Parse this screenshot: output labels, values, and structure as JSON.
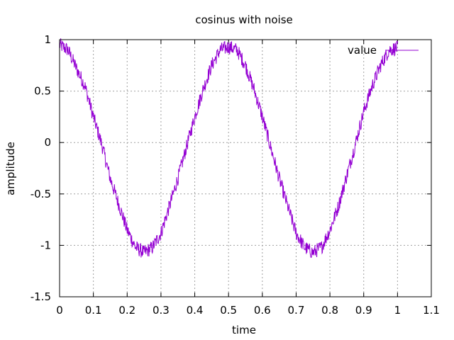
{
  "chart_data": {
    "type": "line",
    "title": "cosinus with noise",
    "xlabel": "time",
    "ylabel": "amplitude",
    "xlim": [
      0,
      1.1
    ],
    "ylim": [
      -1.5,
      1
    ],
    "x_ticks": [
      "0",
      "0.1",
      "0.2",
      "0.3",
      "0.4",
      "0.5",
      "0.6",
      "0.7",
      "0.8",
      "0.9",
      "1",
      "1.1"
    ],
    "y_ticks": [
      "1",
      "0.5",
      "0",
      "-0.5",
      "-1",
      "-1.5"
    ],
    "grid": true,
    "legend_position": "top-right",
    "series": [
      {
        "name": "value",
        "color": "#9400d3",
        "x": [
          0,
          0.025,
          0.05,
          0.075,
          0.1,
          0.125,
          0.15,
          0.175,
          0.2,
          0.225,
          0.25,
          0.275,
          0.3,
          0.325,
          0.35,
          0.375,
          0.4,
          0.425,
          0.45,
          0.475,
          0.5,
          0.525,
          0.55,
          0.575,
          0.6,
          0.625,
          0.65,
          0.675,
          0.7,
          0.725,
          0.75,
          0.775,
          0.8,
          0.825,
          0.85,
          0.875,
          0.9,
          0.925,
          0.95,
          0.975,
          1.0
        ],
        "y": [
          0.95,
          0.9,
          0.72,
          0.55,
          0.25,
          -0.02,
          -0.35,
          -0.6,
          -0.85,
          -1.02,
          -1.07,
          -1.02,
          -0.88,
          -0.62,
          -0.35,
          -0.05,
          0.25,
          0.52,
          0.75,
          0.9,
          0.93,
          0.9,
          0.75,
          0.52,
          0.25,
          -0.05,
          -0.35,
          -0.62,
          -0.88,
          -1.02,
          -1.07,
          -1.02,
          -0.85,
          -0.62,
          -0.32,
          -0.02,
          0.3,
          0.55,
          0.75,
          0.9,
          0.92
        ],
        "noise_amplitude": 0.07
      }
    ]
  }
}
